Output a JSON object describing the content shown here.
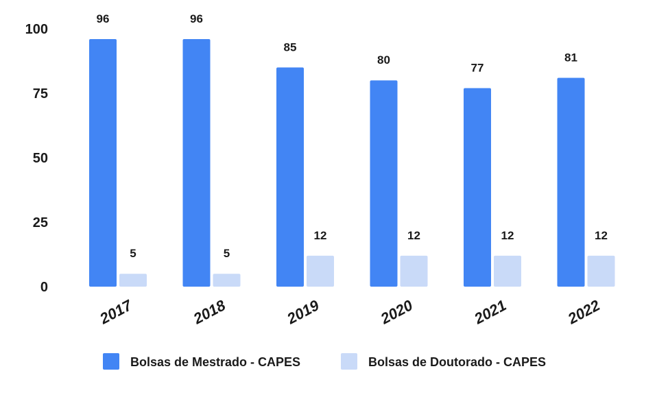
{
  "chart_data": {
    "type": "bar",
    "categories": [
      "2017",
      "2018",
      "2019",
      "2020",
      "2021",
      "2022"
    ],
    "series": [
      {
        "name": "Bolsas de Mestrado - CAPES",
        "values": [
          96,
          96,
          85,
          80,
          77,
          81
        ],
        "color": "#4285f4"
      },
      {
        "name": "Bolsas de Doutorado - CAPES",
        "values": [
          5,
          5,
          12,
          12,
          12,
          12
        ],
        "color": "#c9daf8"
      }
    ],
    "yticks": [
      "0",
      "25",
      "50",
      "75",
      "100"
    ],
    "ylim": [
      0,
      100
    ],
    "grid": false,
    "legend": "bottom",
    "title": "",
    "xlabel": "",
    "ylabel": ""
  }
}
